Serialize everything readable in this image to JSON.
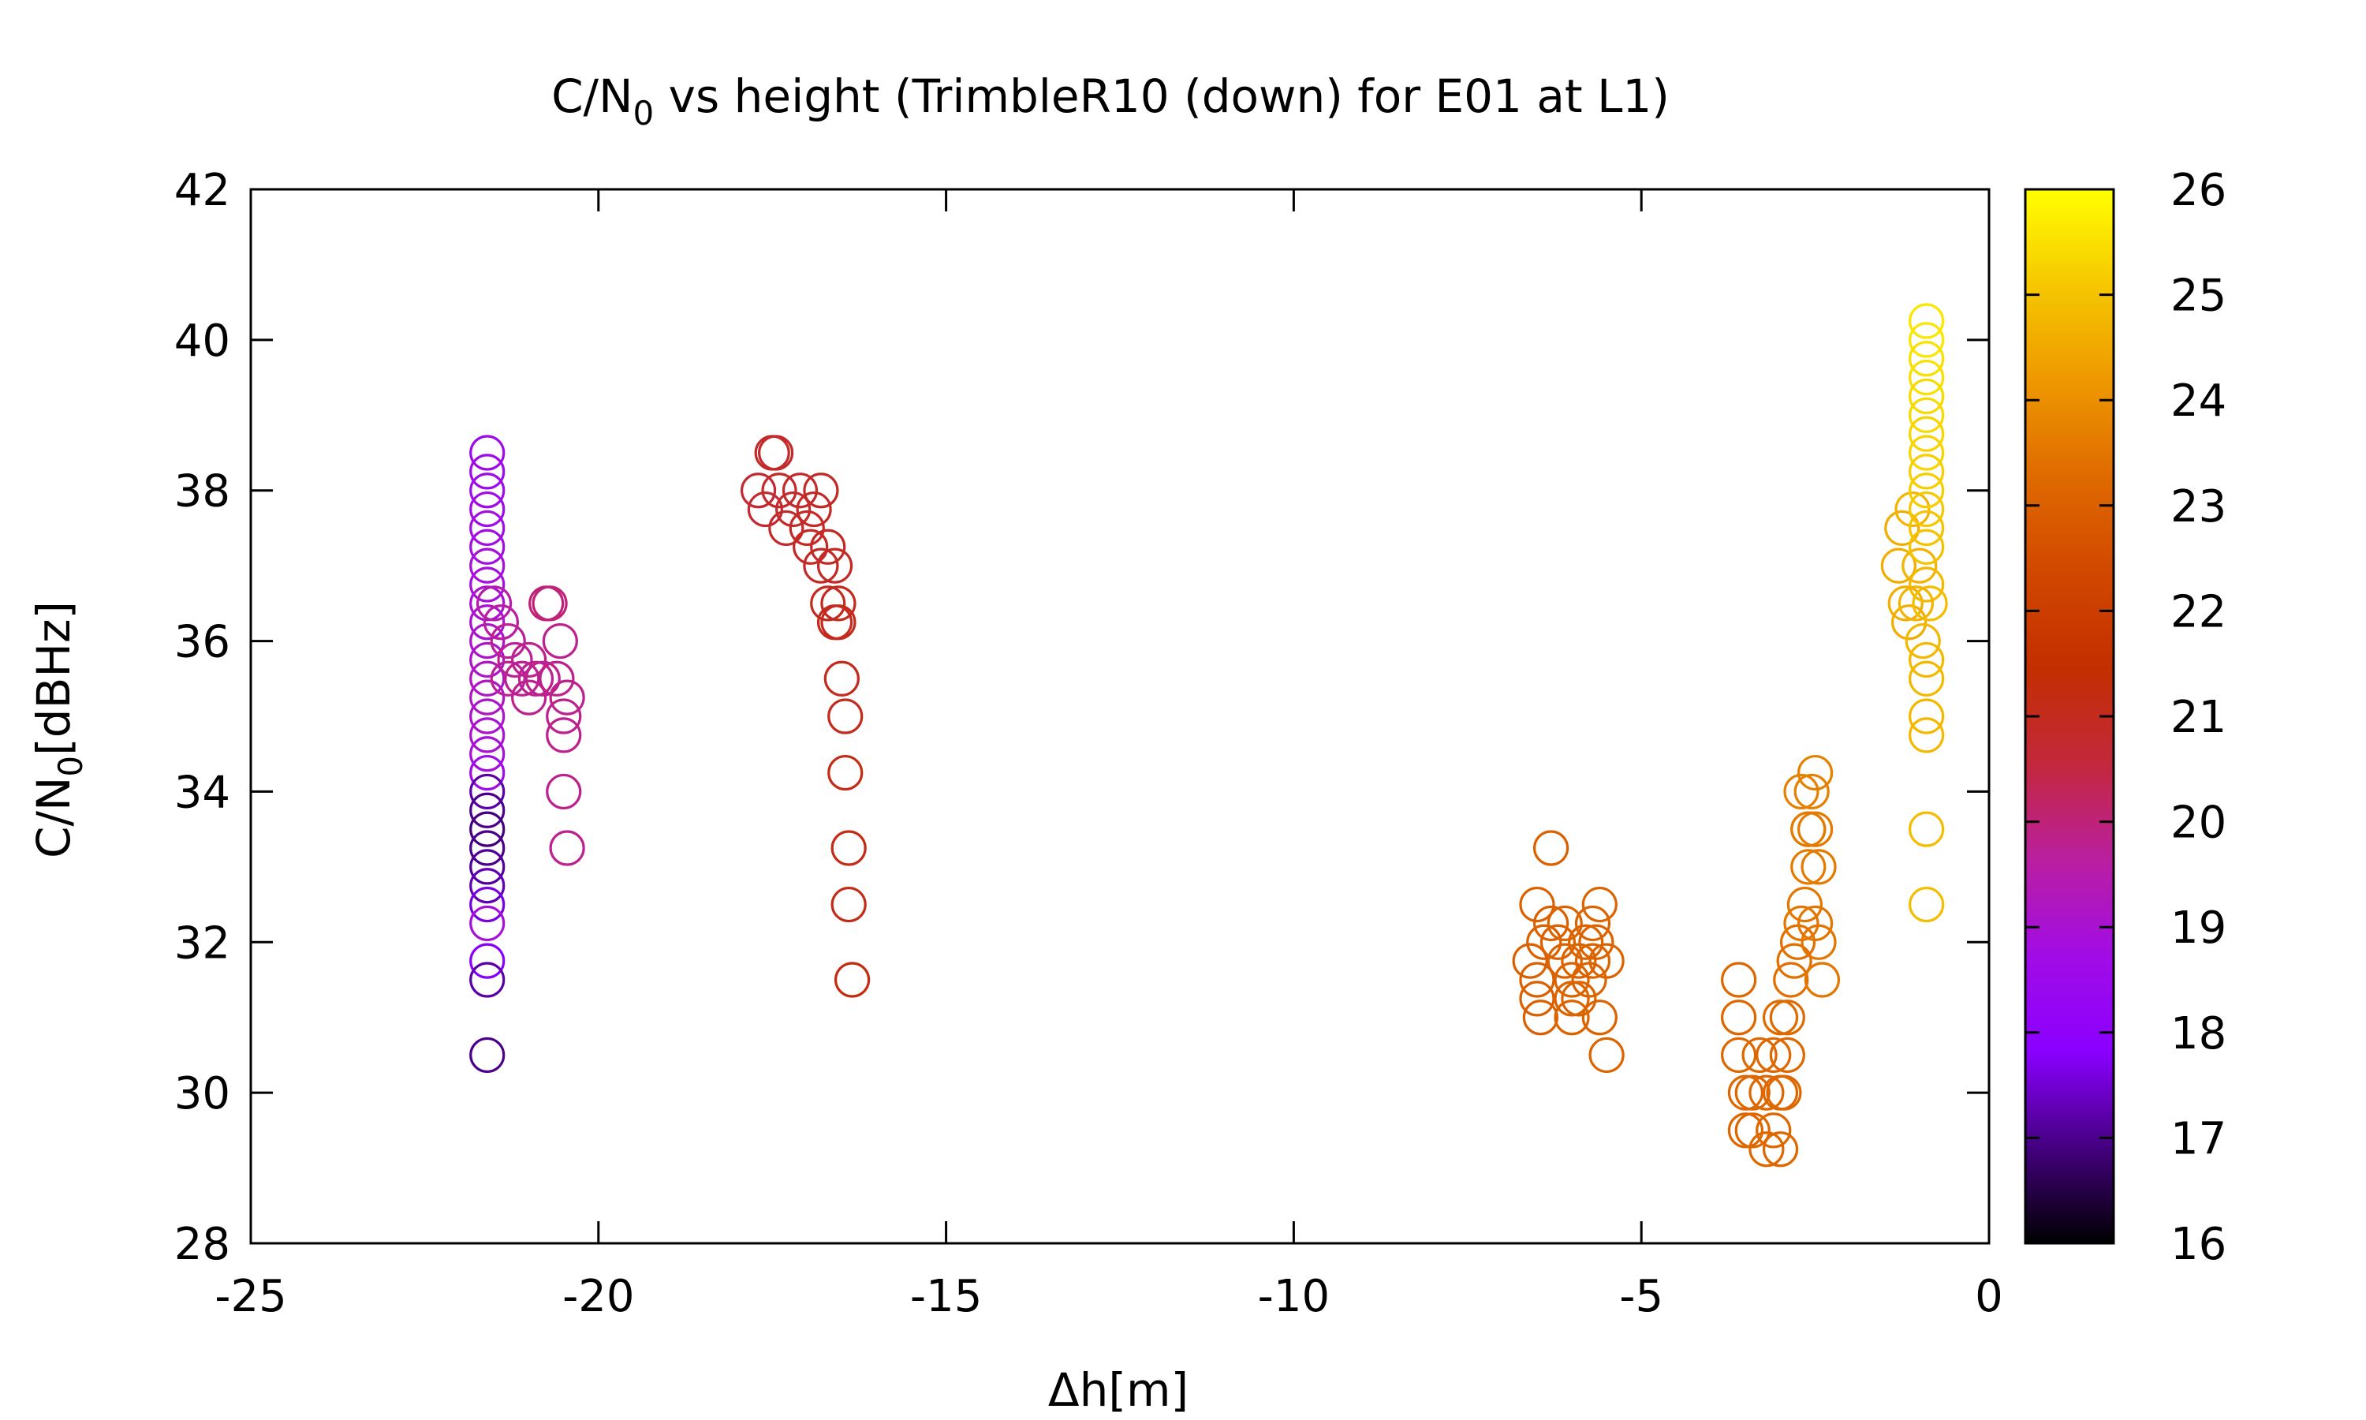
{
  "chart_data": {
    "type": "scatter",
    "title": {
      "pre": "C/N",
      "sub": "0",
      "post": " vs height (TrimbleR10 (down) for E01 at L1)"
    },
    "xlabel": "Δh[m]",
    "ylabel": {
      "pre": "C/N",
      "sub": "0",
      "post": "[dBHz]"
    },
    "xlim": [
      -25,
      0
    ],
    "ylim": [
      28,
      42
    ],
    "xticks": [
      -25,
      -20,
      -15,
      -10,
      -5,
      0
    ],
    "yticks": [
      28,
      30,
      32,
      34,
      36,
      38,
      40,
      42
    ],
    "colorbar": {
      "range": [
        16,
        26
      ],
      "ticks": [
        16,
        17,
        18,
        19,
        20,
        21,
        22,
        23,
        24,
        25,
        26
      ],
      "palette": [
        "#000000",
        "#44007f",
        "#8a00ff",
        "#a10ce6",
        "#ba1fa0",
        "#c3283c",
        "#c32e00",
        "#d14800",
        "#df6a00",
        "#ee9800",
        "#f6c700",
        "#ffff00"
      ]
    },
    "marker": "open-circle",
    "grid": false,
    "legend": "none",
    "points": [
      [
        -21.6,
        38.5,
        18.6
      ],
      [
        -21.6,
        38.25,
        18.6
      ],
      [
        -21.6,
        38.0,
        18.7
      ],
      [
        -21.6,
        37.75,
        18.7
      ],
      [
        -21.6,
        37.5,
        18.8
      ],
      [
        -21.6,
        37.25,
        18.8
      ],
      [
        -21.6,
        37.0,
        18.9
      ],
      [
        -21.6,
        36.75,
        18.9
      ],
      [
        -21.6,
        36.5,
        19.0
      ],
      [
        -21.6,
        36.25,
        19.0
      ],
      [
        -21.6,
        36.0,
        19.1
      ],
      [
        -21.6,
        35.75,
        19.1
      ],
      [
        -21.6,
        35.5,
        19.2
      ],
      [
        -21.6,
        35.25,
        19.2
      ],
      [
        -21.6,
        35.0,
        19.1
      ],
      [
        -21.6,
        34.75,
        19.0
      ],
      [
        -21.6,
        34.5,
        18.9
      ],
      [
        -21.6,
        34.25,
        18.7
      ],
      [
        -21.6,
        34.0,
        17.2
      ],
      [
        -21.6,
        33.75,
        17.0
      ],
      [
        -21.6,
        33.5,
        16.9
      ],
      [
        -21.6,
        33.25,
        17.0
      ],
      [
        -21.6,
        33.0,
        17.1
      ],
      [
        -21.6,
        32.75,
        17.3
      ],
      [
        -21.6,
        32.5,
        17.6
      ],
      [
        -21.6,
        32.25,
        18.9
      ],
      [
        -21.6,
        31.75,
        17.8
      ],
      [
        -21.6,
        31.5,
        17.2
      ],
      [
        -21.6,
        30.5,
        17.0
      ],
      [
        -21.5,
        36.5,
        19.5
      ],
      [
        -21.4,
        36.25,
        19.6
      ],
      [
        -21.3,
        36.0,
        19.7
      ],
      [
        -21.2,
        35.75,
        19.7
      ],
      [
        -21.1,
        35.5,
        19.8
      ],
      [
        -21.0,
        35.75,
        19.8
      ],
      [
        -20.9,
        35.5,
        19.8
      ],
      [
        -20.8,
        35.5,
        19.8
      ],
      [
        -20.7,
        36.5,
        20.0
      ],
      [
        -20.75,
        36.5,
        20.0
      ],
      [
        -21.3,
        35.5,
        19.7
      ],
      [
        -21.0,
        35.25,
        19.8
      ],
      [
        -20.6,
        35.5,
        19.8
      ],
      [
        -20.55,
        36.0,
        19.8
      ],
      [
        -20.5,
        35.0,
        19.8
      ],
      [
        -20.5,
        34.75,
        19.8
      ],
      [
        -20.5,
        34.0,
        19.8
      ],
      [
        -20.45,
        33.25,
        19.8
      ],
      [
        -20.45,
        35.25,
        19.8
      ],
      [
        -17.5,
        38.5,
        20.8
      ],
      [
        -17.45,
        38.5,
        20.8
      ],
      [
        -17.7,
        38.0,
        20.7
      ],
      [
        -17.6,
        37.75,
        20.7
      ],
      [
        -17.4,
        38.0,
        20.8
      ],
      [
        -17.2,
        37.75,
        20.8
      ],
      [
        -17.3,
        37.5,
        20.8
      ],
      [
        -17.0,
        37.5,
        20.9
      ],
      [
        -16.9,
        37.75,
        20.9
      ],
      [
        -16.8,
        38.0,
        20.9
      ],
      [
        -17.1,
        38.0,
        20.8
      ],
      [
        -16.95,
        37.25,
        20.9
      ],
      [
        -16.8,
        37.0,
        20.9
      ],
      [
        -16.7,
        37.25,
        20.9
      ],
      [
        -16.6,
        37.0,
        20.9
      ],
      [
        -16.7,
        36.5,
        21.0
      ],
      [
        -16.55,
        36.5,
        21.0
      ],
      [
        -16.55,
        36.25,
        21.0
      ],
      [
        -16.6,
        36.25,
        21.0
      ],
      [
        -16.5,
        35.5,
        21.0
      ],
      [
        -16.45,
        35.0,
        21.0
      ],
      [
        -16.45,
        34.25,
        21.1
      ],
      [
        -16.4,
        33.25,
        21.1
      ],
      [
        -16.4,
        32.5,
        21.1
      ],
      [
        -16.35,
        31.5,
        21.2
      ],
      [
        -6.5,
        32.5,
        23.0
      ],
      [
        -6.4,
        32.0,
        23.0
      ],
      [
        -6.3,
        32.25,
        23.0
      ],
      [
        -6.2,
        32.0,
        23.0
      ],
      [
        -6.1,
        31.75,
        23.1
      ],
      [
        -6.0,
        31.5,
        23.1
      ],
      [
        -5.9,
        31.75,
        23.1
      ],
      [
        -5.8,
        32.0,
        23.1
      ],
      [
        -5.7,
        32.25,
        23.1
      ],
      [
        -5.6,
        32.5,
        23.1
      ],
      [
        -5.5,
        31.75,
        23.1
      ],
      [
        -6.6,
        31.75,
        23.0
      ],
      [
        -6.5,
        31.25,
        23.0
      ],
      [
        -6.45,
        31.0,
        23.0
      ],
      [
        -6.3,
        33.25,
        23.0
      ],
      [
        -6.1,
        32.25,
        23.1
      ],
      [
        -5.9,
        31.25,
        23.1
      ],
      [
        -5.75,
        31.5,
        23.1
      ],
      [
        -5.6,
        31.0,
        23.1
      ],
      [
        -5.5,
        30.5,
        23.1
      ],
      [
        -6.0,
        31.25,
        23.1
      ],
      [
        -6.0,
        31.0,
        23.1
      ],
      [
        -5.7,
        31.75,
        23.1
      ],
      [
        -6.5,
        31.5,
        23.0
      ],
      [
        -5.65,
        32.0,
        23.1
      ],
      [
        -3.6,
        31.5,
        23.2
      ],
      [
        -3.6,
        31.0,
        23.2
      ],
      [
        -3.6,
        30.5,
        23.2
      ],
      [
        -3.5,
        30.0,
        23.2
      ],
      [
        -3.4,
        30.0,
        23.2
      ],
      [
        -3.3,
        30.5,
        23.2
      ],
      [
        -3.2,
        30.0,
        23.2
      ],
      [
        -3.1,
        30.5,
        23.2
      ],
      [
        -3.0,
        30.0,
        23.2
      ],
      [
        -2.9,
        30.5,
        23.2
      ],
      [
        -3.5,
        29.5,
        23.2
      ],
      [
        -3.4,
        29.5,
        23.2
      ],
      [
        -3.2,
        29.25,
        23.2
      ],
      [
        -3.0,
        29.25,
        23.2
      ],
      [
        -3.1,
        29.5,
        23.2
      ],
      [
        -3.0,
        31.0,
        23.3
      ],
      [
        -2.9,
        31.0,
        23.3
      ],
      [
        -2.85,
        31.5,
        23.4
      ],
      [
        -2.8,
        31.75,
        23.4
      ],
      [
        -2.75,
        32.0,
        23.4
      ],
      [
        -2.7,
        32.25,
        23.5
      ],
      [
        -2.65,
        32.5,
        23.5
      ],
      [
        -2.6,
        33.0,
        23.6
      ],
      [
        -2.6,
        33.5,
        23.6
      ],
      [
        -2.55,
        34.0,
        23.7
      ],
      [
        -2.5,
        34.25,
        23.7
      ],
      [
        -2.5,
        33.5,
        23.6
      ],
      [
        -2.45,
        33.0,
        23.6
      ],
      [
        -2.45,
        32.0,
        23.5
      ],
      [
        -2.4,
        31.5,
        23.5
      ],
      [
        -2.6,
        33.5,
        23.6
      ],
      [
        -2.7,
        34.0,
        23.7
      ],
      [
        -2.5,
        32.25,
        23.5
      ],
      [
        -2.95,
        30.0,
        23.2
      ],
      [
        -1.3,
        37.0,
        24.6
      ],
      [
        -1.25,
        37.5,
        24.6
      ],
      [
        -1.2,
        36.5,
        24.6
      ],
      [
        -1.15,
        36.25,
        24.6
      ],
      [
        -1.1,
        37.75,
        24.7
      ],
      [
        -1.0,
        37.0,
        24.7
      ],
      [
        -0.9,
        36.75,
        24.8
      ],
      [
        -0.95,
        36.0,
        24.8
      ],
      [
        -0.9,
        35.75,
        24.8
      ],
      [
        -0.9,
        35.5,
        24.8
      ],
      [
        -0.9,
        35.0,
        24.8
      ],
      [
        -0.9,
        34.75,
        24.8
      ],
      [
        -0.9,
        33.5,
        24.9
      ],
      [
        -0.9,
        32.5,
        24.9
      ],
      [
        -0.9,
        40.25,
        25.6
      ],
      [
        -0.9,
        40.0,
        25.6
      ],
      [
        -0.9,
        39.75,
        25.5
      ],
      [
        -0.9,
        39.5,
        25.5
      ],
      [
        -0.9,
        39.25,
        25.4
      ],
      [
        -0.9,
        39.0,
        25.4
      ],
      [
        -0.9,
        38.75,
        25.3
      ],
      [
        -0.9,
        38.5,
        25.3
      ],
      [
        -0.9,
        38.25,
        25.2
      ],
      [
        -0.9,
        38.0,
        25.2
      ],
      [
        -0.9,
        37.75,
        25.1
      ],
      [
        -0.9,
        37.5,
        25.0
      ],
      [
        -0.9,
        37.25,
        25.0
      ],
      [
        -0.85,
        36.5,
        24.9
      ],
      [
        -1.05,
        36.5,
        24.7
      ]
    ]
  }
}
